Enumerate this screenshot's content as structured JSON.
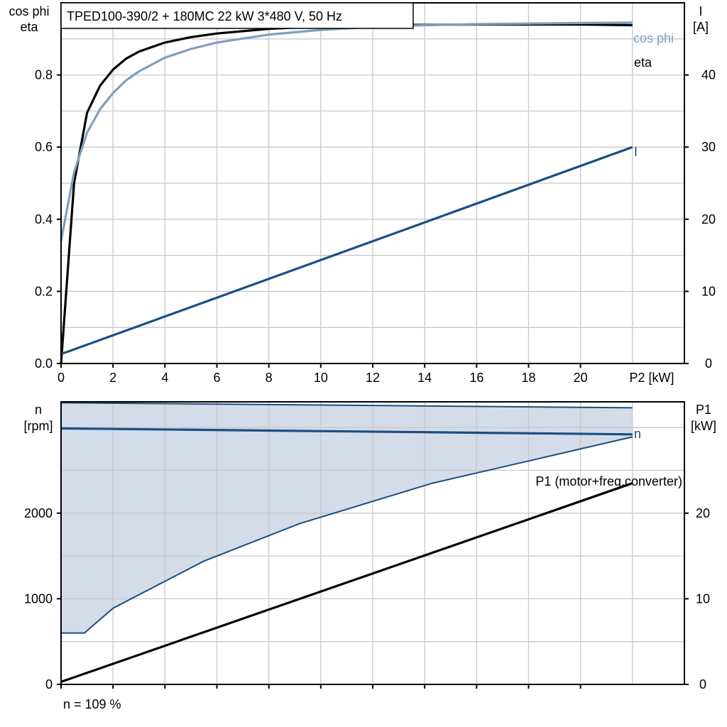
{
  "chart_data": [
    {
      "type": "line",
      "title": "TPED100-390/2 + 180MC   22 kW   3*480 V, 50 Hz",
      "xlabel": "P2 [kW]",
      "ylabel_left": [
        "cos phi",
        "eta"
      ],
      "ylabel_right": [
        "I",
        "[A]"
      ],
      "xlim": [
        0,
        24
      ],
      "ylim_left": [
        0,
        1.0
      ],
      "ylim_right": [
        0,
        50
      ],
      "x_ticks": [
        0,
        2,
        4,
        6,
        8,
        10,
        12,
        14,
        16,
        18,
        20
      ],
      "y_left_ticks": [
        0.0,
        0.2,
        0.4,
        0.6,
        0.8
      ],
      "y_right_ticks": [
        0,
        10,
        20,
        30,
        40
      ],
      "x_tick_labels": [
        "0",
        "2",
        "4",
        "6",
        "8",
        "10",
        "12",
        "14",
        "16",
        "18",
        "20"
      ],
      "y_left_tick_labels": [
        "0.0",
        "0.2",
        "0.4",
        "0.6",
        "0.8"
      ],
      "y_right_tick_labels": [
        "0",
        "10",
        "20",
        "30",
        "40"
      ],
      "grid": true,
      "series": [
        {
          "name": "eta",
          "axis": "left",
          "color": "#000000",
          "x": [
            0,
            0.5,
            1,
            1.5,
            2,
            2.5,
            3,
            4,
            5,
            6,
            8,
            10,
            12,
            16,
            20,
            22
          ],
          "y": [
            0.0,
            0.5,
            0.695,
            0.77,
            0.815,
            0.845,
            0.865,
            0.89,
            0.905,
            0.915,
            0.928,
            0.935,
            0.938,
            0.94,
            0.94,
            0.938
          ]
        },
        {
          "name": "cos phi",
          "axis": "left",
          "color": "#7f9fbe",
          "x": [
            0,
            0.5,
            1,
            1.5,
            2,
            2.5,
            3,
            4,
            5,
            6,
            8,
            10,
            12,
            14,
            16,
            20,
            22
          ],
          "y": [
            0.34,
            0.53,
            0.64,
            0.705,
            0.75,
            0.785,
            0.81,
            0.848,
            0.872,
            0.89,
            0.912,
            0.925,
            0.933,
            0.938,
            0.941,
            0.944,
            0.945
          ]
        },
        {
          "name": "I",
          "axis": "right",
          "color": "#1a4f82",
          "x": [
            0,
            22
          ],
          "y": [
            1.3,
            30
          ]
        }
      ]
    },
    {
      "type": "area",
      "xlim": [
        0,
        24
      ],
      "ylabel_left": [
        "n",
        "[rpm]"
      ],
      "ylabel_right": [
        "P1",
        "[kW]"
      ],
      "ylim_left": [
        0,
        3300
      ],
      "ylim_right": [
        0,
        33
      ],
      "y_left_ticks": [
        0,
        1000,
        2000
      ],
      "y_right_ticks": [
        0,
        10,
        20
      ],
      "y_left_tick_labels": [
        "0",
        "1000",
        "2000"
      ],
      "y_right_tick_labels": [
        "0",
        "10",
        "20"
      ],
      "grid": true,
      "series": [
        {
          "name": "n",
          "axis": "left",
          "color": "#1a4f82",
          "x": [
            0,
            22
          ],
          "y": [
            2990,
            2920
          ]
        },
        {
          "name": "range_max",
          "axis": "left",
          "color": "#1a4f82",
          "x": [
            0,
            22
          ],
          "y": [
            3290,
            3230
          ]
        },
        {
          "name": "range_min",
          "axis": "left",
          "color": "#1a4f82",
          "x": [
            0,
            0.9,
            2,
            5.5,
            9.2,
            14.3,
            22
          ],
          "y": [
            600,
            600,
            890,
            1440,
            1880,
            2350,
            2890
          ]
        },
        {
          "name": "P1 (motor+freq.converter)",
          "axis": "right",
          "color": "#000000",
          "x": [
            0,
            22
          ],
          "y": [
            0.3,
            23.5
          ]
        }
      ],
      "annotation": "n = 109 %",
      "fill_color": "#d3dce8"
    }
  ]
}
